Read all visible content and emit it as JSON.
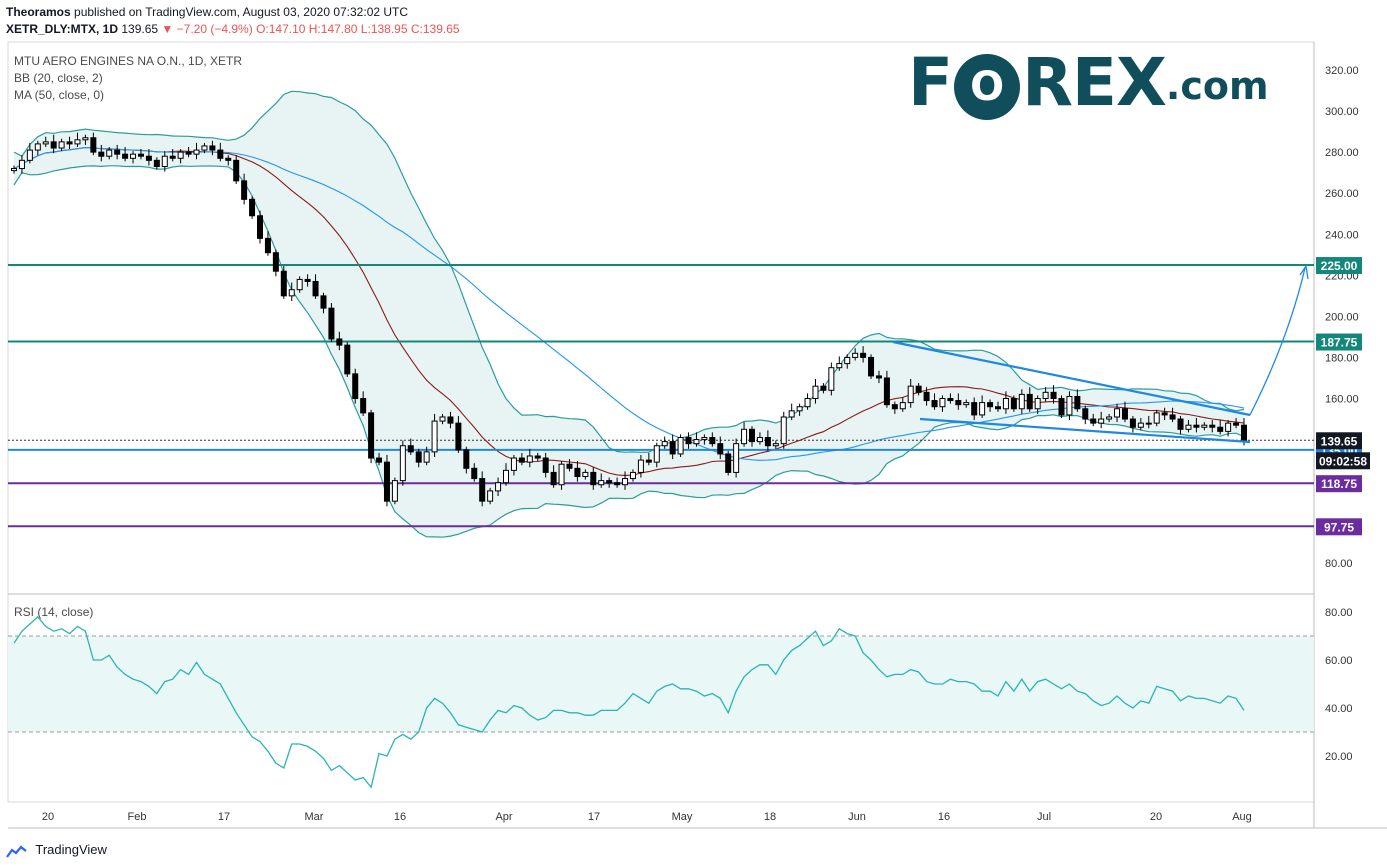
{
  "header": {
    "publisher": "Theoramos",
    "published_rest": "published on TradingView.com, August 03, 2020 07:32:02 UTC",
    "symbol": "XETR_DLY:MTX, 1D",
    "last": "139.65",
    "change": "−7.20 (−4.9%)",
    "ohlc": "O:147.10 H:147.80 L:138.95 C:139.65"
  },
  "indicators": {
    "title": "MTU AERO ENGINES NA O.N., 1D, XETR",
    "bb": "BB (20, close, 2)",
    "ma": "MA (50, close, 0)",
    "rsi": "RSI (14, close)"
  },
  "logo": {
    "part1": "F",
    "o": "O",
    "part2": "REX",
    "part3": ".com"
  },
  "footer": {
    "brand": "TradingView"
  },
  "colors": {
    "up": "#ffffff",
    "down": "#000000",
    "teal_line": "#12877a",
    "purple_line": "#6a2c9e",
    "blue_line": "#1e88e5",
    "bb_band": "#2a9d9a",
    "bb_fill": "#e8f4f4",
    "ma": "#2196f3",
    "bb_basis": "#8b1a1a",
    "rsi": "#2ab5b0",
    "rsi_fill": "#e9f7f7",
    "last_tag": "#131722"
  },
  "chart_data": [
    {
      "type": "candlestick",
      "name": "MTX price",
      "ylim": [
        72,
        330
      ],
      "y_ticks": [
        "320.00",
        "300.00",
        "280.00",
        "260.00",
        "240.00",
        "220.00",
        "200.00",
        "180.00",
        "160.00",
        "140.00",
        "80.00"
      ],
      "x_labels": [
        "20",
        "Feb",
        "17",
        "Mar",
        "16",
        "Apr",
        "17",
        "May",
        "18",
        "Jun",
        "16",
        "Jul",
        "20",
        "Aug"
      ],
      "closes": [
        272,
        276,
        281,
        284,
        285,
        282,
        285,
        284,
        286,
        287,
        280,
        278,
        281,
        279,
        277,
        279,
        278,
        276,
        273,
        278,
        277,
        280,
        279,
        281,
        283,
        281,
        277,
        276,
        266,
        257,
        249,
        238,
        231,
        222,
        210,
        213,
        218,
        217,
        210,
        204,
        189,
        186,
        172,
        160,
        153,
        131,
        129,
        110,
        120,
        137,
        134,
        129,
        134,
        149,
        151,
        148,
        135,
        126,
        121,
        110,
        115,
        119,
        125,
        131,
        129,
        132,
        131,
        124,
        118,
        128,
        126,
        122,
        124,
        118,
        120,
        119,
        118,
        121,
        124,
        130,
        129,
        137,
        139,
        133,
        141,
        138,
        140,
        141,
        138,
        133,
        124,
        138,
        145,
        139,
        141,
        137,
        138,
        151,
        154,
        156,
        160,
        166,
        164,
        175,
        177,
        180,
        182,
        180,
        171,
        170,
        157,
        155,
        158,
        166,
        163,
        159,
        156,
        160,
        159,
        157,
        158,
        152,
        158,
        156,
        155,
        160,
        155,
        162,
        155,
        160,
        163,
        160,
        152,
        161,
        155,
        150,
        148,
        150,
        151,
        155,
        150,
        146,
        148,
        148,
        153,
        152,
        150,
        145,
        147,
        146,
        147,
        146,
        144,
        148,
        147,
        139.65
      ],
      "last_close": 139.65,
      "levels": [
        {
          "value": 225.0,
          "label": "225.00",
          "color": "#12877a"
        },
        {
          "value": 187.75,
          "label": "187.75",
          "color": "#12877a"
        },
        {
          "value": 135.0,
          "label": "135.00",
          "color": "#1e88e5"
        },
        {
          "value": 118.75,
          "label": "118.75",
          "color": "#6a2c9e"
        },
        {
          "value": 97.75,
          "label": "97.75",
          "color": "#6a2c9e"
        }
      ],
      "countdown": "09:02:58",
      "series": [
        {
          "name": "BB (20, close, 2)"
        },
        {
          "name": "MA (50, close, 0)"
        }
      ]
    },
    {
      "type": "line",
      "name": "RSI (14, close)",
      "ylim": [
        0,
        90
      ],
      "y_ticks": [
        "80.00",
        "60.00",
        "40.00",
        "20.00"
      ],
      "bands": [
        70,
        30
      ],
      "values": [
        67,
        72,
        75,
        78,
        74,
        72,
        73,
        71,
        74,
        72,
        60,
        60,
        62,
        57,
        54,
        52,
        51,
        49,
        46,
        51,
        52,
        56,
        54,
        59,
        54,
        52,
        50,
        44,
        38,
        33,
        28,
        26,
        22,
        17,
        15,
        25,
        25,
        24,
        22,
        19,
        14,
        16,
        13,
        10,
        11,
        7,
        21,
        20,
        27,
        29,
        27,
        30,
        40,
        44,
        42,
        38,
        33,
        32,
        31,
        30,
        35,
        39,
        38,
        41,
        40,
        37,
        35,
        36,
        39,
        39,
        38,
        38,
        37,
        37,
        39,
        39,
        39,
        42,
        46,
        44,
        42,
        47,
        49,
        50,
        48,
        48,
        47,
        45,
        46,
        44,
        38,
        47,
        53,
        56,
        58,
        58,
        54,
        60,
        64,
        66,
        69,
        72,
        66,
        68,
        73,
        71,
        70,
        63,
        60,
        56,
        53,
        54,
        54,
        56,
        55,
        51,
        50,
        50,
        52,
        51,
        51,
        50,
        47,
        47,
        45,
        51,
        47,
        52,
        47,
        51,
        52,
        50,
        48,
        50,
        47,
        46,
        43,
        41,
        42,
        45,
        42,
        40,
        43,
        42,
        49,
        48,
        47,
        43,
        45,
        44,
        44,
        43,
        42,
        45,
        44,
        39
      ]
    }
  ]
}
